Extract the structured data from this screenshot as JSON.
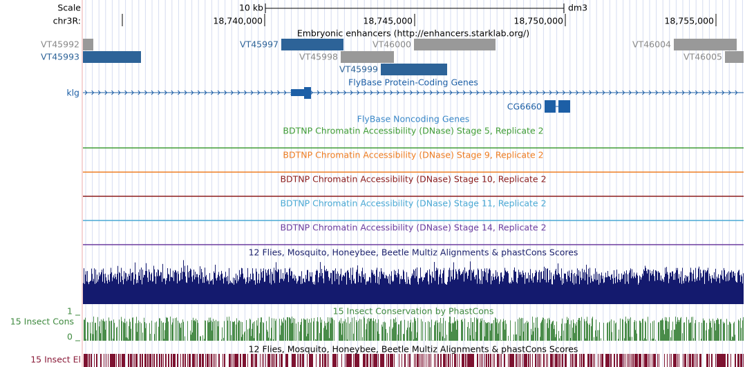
{
  "scale": {
    "label": "Scale",
    "size": "10 kb",
    "assembly": "dm3"
  },
  "ruler": {
    "chrom": "chr3R:",
    "positions": [
      "18,740,000",
      "18,745,000",
      "18,750,000",
      "18,755,000"
    ]
  },
  "enhancers": {
    "title": "Embryonic enhancers (http://enhancers.starklab.org/)",
    "items": [
      "VT45992",
      "VT45993",
      "VT45997",
      "VT46000",
      "VT46004",
      "VT45998",
      "VT46005",
      "VT45999"
    ]
  },
  "protein_genes": {
    "title": "FlyBase Protein-Coding Genes",
    "genes": [
      "klg",
      "CG6660"
    ]
  },
  "noncoding": {
    "title": "FlyBase Noncoding Genes"
  },
  "dnase": [
    "BDTNP Chromatin Accessibility (DNase) Stage 5, Replicate 2",
    "BDTNP Chromatin Accessibility (DNase) Stage 9, Replicate 2",
    "BDTNP Chromatin Accessibility (DNase) Stage 10, Replicate 2",
    "BDTNP Chromatin Accessibility (DNase) Stage 11, Replicate 2",
    "BDTNP Chromatin Accessibility (DNase) Stage 14, Replicate 2"
  ],
  "conservation": {
    "title": "12 Flies, Mosquito, Honeybee, Beetle Multiz Alignments & phastCons Scores"
  },
  "insect_cons": {
    "title": "15 Insect Conservation by PhastCons",
    "label": "15 Insect Cons",
    "max": "1",
    "min": "0"
  },
  "elements": {
    "title": "12 Flies, Mosquito, Honeybee, Beetle Multiz Alignments & phastCons Scores",
    "label": "15 Insect El"
  }
}
